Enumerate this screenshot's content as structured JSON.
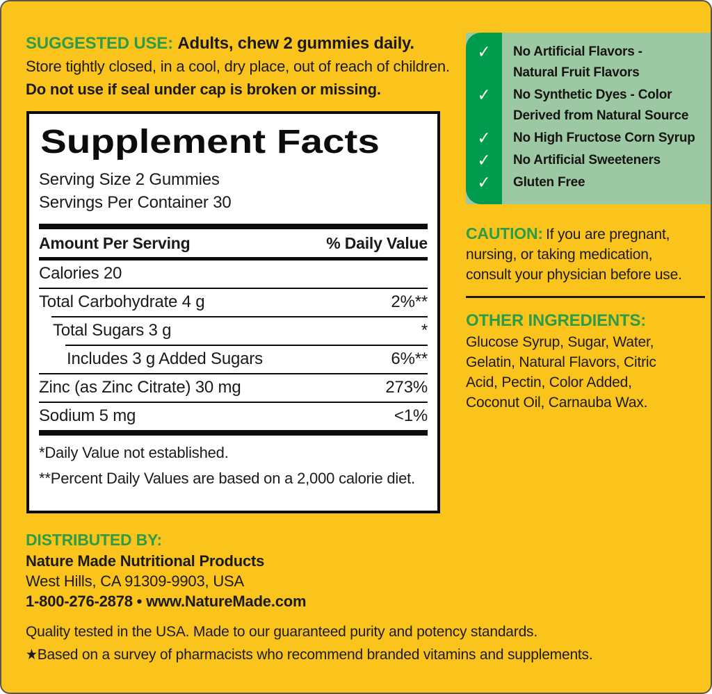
{
  "colors": {
    "label_background": "#FBC41D",
    "heading_green": "#2E9B47",
    "check_strip_green": "#009B4C",
    "checklist_background": "#9CC9A4",
    "panel_background": "#FFFFFF",
    "text_black": "#1C1A17"
  },
  "suggested_use": {
    "heading": "SUGGESTED USE:",
    "heading_rest": "Adults, chew 2 gummies daily.",
    "line2": "Store tightly closed, in a cool, dry place, out of reach of children.",
    "line3": "Do not use if seal under cap is broken or missing."
  },
  "benefits": {
    "checkmark": "✓",
    "items": [
      "No Artificial Flavors -\nNatural Fruit Flavors",
      "No Synthetic Dyes - Color\nDerived from Natural Source",
      "No High Fructose Corn Syrup",
      "No Artificial Sweeteners",
      "Gluten Free"
    ]
  },
  "supplement_facts": {
    "title": "Supplement Facts",
    "serving_size": "Serving Size 2 Gummies",
    "servings_per_container": "Servings Per Container 30",
    "header": {
      "left": "Amount Per Serving",
      "right": "% Daily Value"
    },
    "rows": [
      {
        "label": "Calories 20",
        "value": ""
      },
      {
        "label": "Total Carbohydrate 4 g",
        "value": "2%**"
      },
      {
        "label": "Total Sugars 3 g",
        "value": "*"
      },
      {
        "label": "Includes 3 g Added Sugars",
        "value": "6%**"
      },
      {
        "label": "Zinc (as Zinc Citrate) 30 mg",
        "value": "273%"
      },
      {
        "label": "Sodium 5 mg",
        "value": "<1%"
      }
    ],
    "footnotes": [
      "*Daily Value not established.",
      "**Percent Daily Values are based on a 2,000 calorie diet."
    ]
  },
  "caution": {
    "heading": "CAUTION:",
    "text": "If you are pregnant,\nnursing, or taking medication,\nconsult your physician before use."
  },
  "other_ingredients": {
    "heading": "OTHER INGREDIENTS:",
    "text": "Glucose Syrup, Sugar, Water,\nGelatin, Natural Flavors, Citric\nAcid, Pectin, Color Added,\nCoconut Oil, Carnauba Wax."
  },
  "distributed_by": {
    "heading": "DISTRIBUTED BY:",
    "company": "Nature Made Nutritional Products",
    "address": "West Hills, CA 91309-9903, USA",
    "contact": "1-800-276-2878 • www.NatureMade.com"
  },
  "footer": {
    "line1": "Quality tested in the USA. Made to our guaranteed purity and potency standards.",
    "line2": "★Based on a survey of pharmacists who recommend branded vitamins and supplements."
  }
}
